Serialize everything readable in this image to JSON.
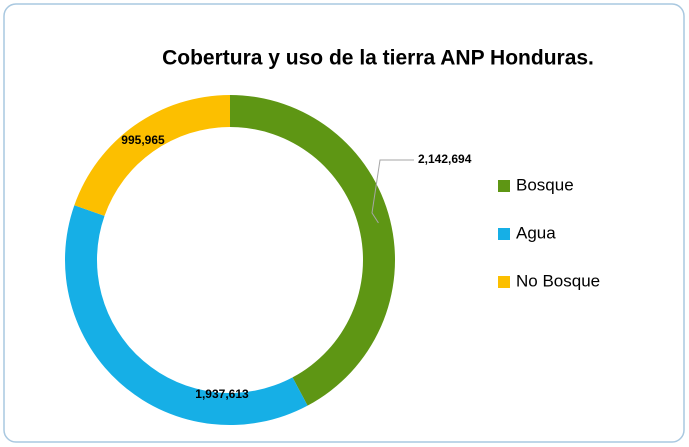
{
  "chart_data": {
    "type": "donut",
    "title": "Cobertura y uso de la tierra ANP Honduras.",
    "categories": [
      "Bosque",
      "Agua",
      "No Bosque"
    ],
    "values": [
      2142694,
      1937613,
      995965
    ],
    "value_labels": [
      "2,142,694",
      "1,937,613",
      "995,965"
    ],
    "colors": [
      "#5e9614",
      "#16afe6",
      "#fcbf00"
    ],
    "legend": "right"
  }
}
